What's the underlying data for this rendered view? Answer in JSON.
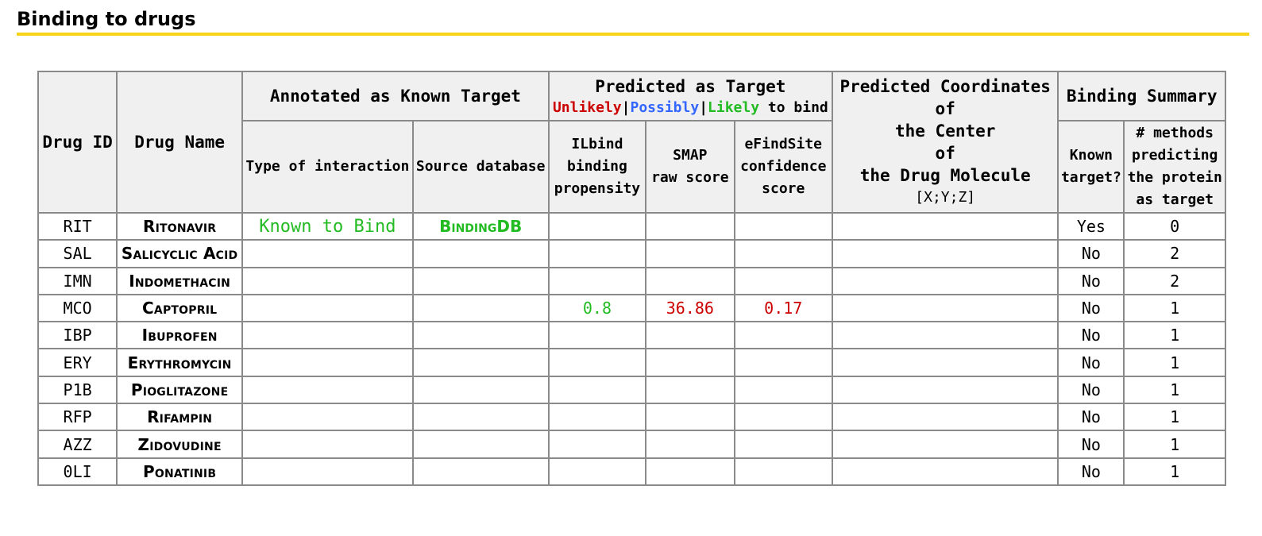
{
  "section": {
    "title": "Binding to drugs",
    "accent_color": "#f7d31a"
  },
  "headers": {
    "drug_id": "Drug ID",
    "drug_name": "Drug Name",
    "annotated_group": "Annotated as Known Target",
    "type_of_interaction": "Type of interaction",
    "source_database": "Source database",
    "predicted_group": "Predicted as Target",
    "legend": {
      "unlikely": "Unlikely",
      "sep": "|",
      "possibly": "Possibly",
      "likely": "Likely",
      "suffix": " to bind"
    },
    "ilbind": [
      "ILbind",
      "binding",
      "propensity"
    ],
    "smap": [
      "SMAP",
      "raw score"
    ],
    "efindsite": [
      "eFindSite",
      "confidence",
      "score"
    ],
    "coords": [
      "Predicted Coordinates",
      "of",
      "the Center",
      "of",
      "the Drug Molecule"
    ],
    "coords_sub": "[X;Y;Z]",
    "summary_group": "Binding Summary",
    "known_target": [
      "Known",
      "target?"
    ],
    "num_methods": [
      "# methods",
      "predicting",
      "the protein",
      "as target"
    ]
  },
  "colors": {
    "unlikely": "#cc0000",
    "possibly": "#3366ff",
    "likely": "#22bb22"
  },
  "rows": [
    {
      "id": "RIT",
      "name": "Ritonavir",
      "interaction": "Known to Bind",
      "source": "BindingDB",
      "ilbind": "",
      "smap": "",
      "efind": "",
      "coords": "",
      "known": "Yes",
      "methods": "0"
    },
    {
      "id": "SAL",
      "name": "Salicyclic Acid",
      "interaction": "",
      "source": "",
      "ilbind": "",
      "smap": "",
      "efind": "",
      "coords": "",
      "known": "No",
      "methods": "2"
    },
    {
      "id": "IMN",
      "name": "Indomethacin",
      "interaction": "",
      "source": "",
      "ilbind": "",
      "smap": "",
      "efind": "",
      "coords": "",
      "known": "No",
      "methods": "2"
    },
    {
      "id": "MCO",
      "name": "Captopril",
      "interaction": "",
      "source": "",
      "ilbind": "0.8",
      "smap": "36.86",
      "efind": "0.17",
      "coords": "",
      "known": "No",
      "methods": "1"
    },
    {
      "id": "IBP",
      "name": "Ibuprofen",
      "interaction": "",
      "source": "",
      "ilbind": "",
      "smap": "",
      "efind": "",
      "coords": "",
      "known": "No",
      "methods": "1"
    },
    {
      "id": "ERY",
      "name": "Erythromycin",
      "interaction": "",
      "source": "",
      "ilbind": "",
      "smap": "",
      "efind": "",
      "coords": "",
      "known": "No",
      "methods": "1"
    },
    {
      "id": "P1B",
      "name": "Pioglitazone",
      "interaction": "",
      "source": "",
      "ilbind": "",
      "smap": "",
      "efind": "",
      "coords": "",
      "known": "No",
      "methods": "1"
    },
    {
      "id": "RFP",
      "name": "Rifampin",
      "interaction": "",
      "source": "",
      "ilbind": "",
      "smap": "",
      "efind": "",
      "coords": "",
      "known": "No",
      "methods": "1"
    },
    {
      "id": "AZZ",
      "name": "Zidovudine",
      "interaction": "",
      "source": "",
      "ilbind": "",
      "smap": "",
      "efind": "",
      "coords": "",
      "known": "No",
      "methods": "1"
    },
    {
      "id": "0LI",
      "name": "Ponatinib",
      "interaction": "",
      "source": "",
      "ilbind": "",
      "smap": "",
      "efind": "",
      "coords": "",
      "known": "No",
      "methods": "1"
    }
  ]
}
